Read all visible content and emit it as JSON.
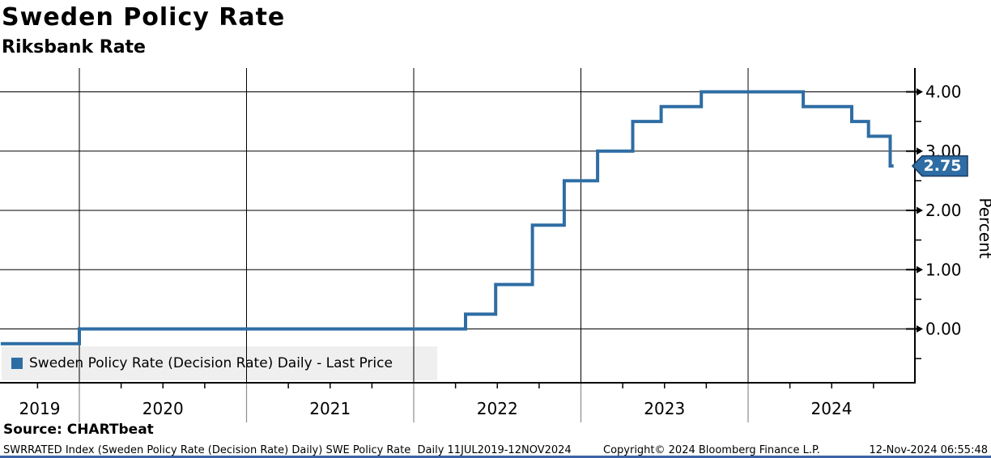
{
  "header": {
    "title": "Sweden Policy Rate",
    "subtitle": "Riksbank Rate"
  },
  "legend": {
    "label": "Sweden Policy Rate (Decision Rate) Daily - Last Price"
  },
  "footer": {
    "source": "Source: CHARTbeat",
    "meta": "SWRRATED Index (Sweden Policy Rate (Decision Rate) Daily) SWE Policy Rate  Daily 11JUL2019-12NOV2024",
    "copyright": "Copyright© 2024 Bloomberg Finance L.P.",
    "timestamp": "12-Nov-2024 06:55:48"
  },
  "colors": {
    "line": "#2e6da4",
    "badge_bg": "#2e6da4",
    "badge_border": "#1b3a5f",
    "badge_text": "#ffffff",
    "grid": "#000000",
    "axis": "#000000",
    "year_divider": "#8c8c8c",
    "legend_bg": "#efefef",
    "bottom_bar": "#3a63a8"
  },
  "chart_data": {
    "type": "line",
    "step": true,
    "title": "Sweden Policy Rate",
    "subtitle": "Riksbank Rate",
    "xlabel": "",
    "ylabel": "Percent",
    "x_range_label": "11JUL2019-12NOV2024",
    "ylim": [
      -0.92,
      4.4
    ],
    "xlim_years": [
      2019.53,
      2024.87
    ],
    "grid": true,
    "x_tick_labels": [
      "2019",
      "2020",
      "2021",
      "2022",
      "2023",
      "2024"
    ],
    "y_ticks": [
      {
        "value": 4.0,
        "label": "4.00"
      },
      {
        "value": 3.0,
        "label": "3.00"
      },
      {
        "value": 2.0,
        "label": "2.00"
      },
      {
        "value": 1.0,
        "label": "1.00"
      },
      {
        "value": 0.0,
        "label": "0.00"
      }
    ],
    "y_minor_ticks": [
      3.5,
      2.5,
      1.5,
      0.5,
      -0.5
    ],
    "series": [
      {
        "name": "Sweden Policy Rate (Decision Rate) Daily - Last Price",
        "points": [
          {
            "x": 2019.53,
            "y": -0.25
          },
          {
            "x": 2020.0,
            "y": 0.0
          },
          {
            "x": 2022.31,
            "y": 0.25
          },
          {
            "x": 2022.49,
            "y": 0.75
          },
          {
            "x": 2022.71,
            "y": 1.75
          },
          {
            "x": 2022.9,
            "y": 2.5
          },
          {
            "x": 2023.1,
            "y": 3.0
          },
          {
            "x": 2023.31,
            "y": 3.5
          },
          {
            "x": 2023.48,
            "y": 3.75
          },
          {
            "x": 2023.72,
            "y": 4.0
          },
          {
            "x": 2024.33,
            "y": 3.75
          },
          {
            "x": 2024.62,
            "y": 3.5
          },
          {
            "x": 2024.72,
            "y": 3.25
          },
          {
            "x": 2024.85,
            "y": 2.75
          }
        ],
        "x_end": 2024.87
      }
    ],
    "last_price": {
      "value": 2.75,
      "label": "2.75"
    }
  }
}
